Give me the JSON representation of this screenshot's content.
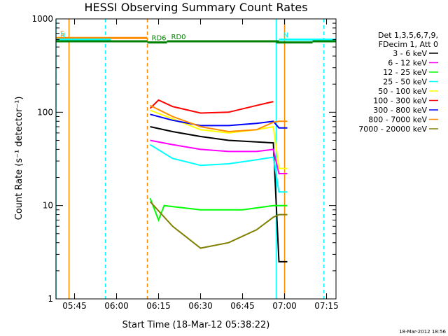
{
  "chart_data": {
    "type": "line",
    "title": "HESSI Observing Summary Count Rates",
    "xlabel": "Start Time (18-Mar-12 05:38:22)",
    "ylabel": "Count Rate (s⁻¹ detector⁻¹)",
    "ylog": true,
    "ylim": [
      1,
      1000
    ],
    "xlim": [
      "05:38:22",
      "07:18:22"
    ],
    "x_ticks": [
      "05:45",
      "06:00",
      "06:15",
      "06:30",
      "06:45",
      "07:00",
      "07:15"
    ],
    "y_ticks": [
      "1",
      "10",
      "100",
      "1000"
    ],
    "grid": false,
    "legend_placement": "right",
    "legend_header": [
      "Det 1,3,5,6,7,9,",
      "FDecim 1, Att 0"
    ],
    "series": [
      {
        "name": "3 - 6 keV",
        "color": "#000000",
        "x": [
          "06:12",
          "06:20",
          "06:30",
          "06:40",
          "06:50",
          "06:56",
          "06:58",
          "07:01"
        ],
        "values": [
          70,
          62,
          55,
          50,
          48,
          47,
          2.5,
          2.5
        ]
      },
      {
        "name": "6 - 12 keV",
        "color": "#ff00ff",
        "x": [
          "06:12",
          "06:20",
          "06:30",
          "06:40",
          "06:50",
          "06:56",
          "06:58",
          "07:01"
        ],
        "values": [
          50,
          45,
          40,
          38,
          38,
          40,
          22,
          22
        ]
      },
      {
        "name": "12 - 25 keV",
        "color": "#00ff00",
        "x": [
          "06:12",
          "06:15",
          "06:17",
          "06:30",
          "06:45",
          "06:56",
          "06:58",
          "07:01"
        ],
        "values": [
          12,
          7,
          10,
          9,
          9,
          10,
          10,
          10
        ]
      },
      {
        "name": "25 - 50 keV",
        "color": "#00ffff",
        "x": [
          "06:12",
          "06:20",
          "06:30",
          "06:40",
          "06:50",
          "06:56",
          "06:58",
          "07:01"
        ],
        "values": [
          45,
          32,
          27,
          28,
          31,
          33,
          14,
          14
        ]
      },
      {
        "name": "50 - 100 keV",
        "color": "#ffff00",
        "x": [
          "06:12",
          "06:20",
          "06:30",
          "06:40",
          "06:50",
          "06:56",
          "06:58",
          "07:01"
        ],
        "values": [
          105,
          85,
          65,
          60,
          65,
          70,
          25,
          25
        ]
      },
      {
        "name": "100 - 300 keV",
        "color": "#ff0000",
        "x": [
          "06:12",
          "06:15",
          "06:20",
          "06:30",
          "06:40",
          "06:50",
          "06:56"
        ],
        "values": [
          110,
          135,
          115,
          98,
          100,
          118,
          130
        ]
      },
      {
        "name": "300 - 800 keV",
        "color": "#0000ff",
        "x": [
          "06:12",
          "06:20",
          "06:30",
          "06:40",
          "06:50",
          "06:56",
          "06:58",
          "07:01"
        ],
        "values": [
          95,
          82,
          72,
          72,
          76,
          80,
          68,
          68
        ]
      },
      {
        "name": "800 - 7000 keV",
        "color": "#ff8c00",
        "x": [
          "06:12",
          "06:20",
          "06:30",
          "06:40",
          "06:50",
          "06:56",
          "06:58",
          "07:01"
        ],
        "values": [
          118,
          90,
          70,
          62,
          65,
          78,
          80,
          80
        ]
      },
      {
        "name": "7000 - 20000 keV",
        "color": "#808000",
        "x": [
          "06:12",
          "06:20",
          "06:30",
          "06:40",
          "06:50",
          "06:56",
          "06:58",
          "07:01"
        ],
        "values": [
          11,
          6,
          3.5,
          4,
          5.5,
          7.5,
          8,
          8
        ]
      }
    ],
    "annotations": [
      {
        "text": "S",
        "color": "#ff8c00",
        "x_start": "05:38:22",
        "x_end": "06:11",
        "level": 1.25
      },
      {
        "text": "N",
        "color": "#00ffff",
        "x_start": "05:38:22",
        "x_end": "05:58",
        "level": 1.2
      },
      {
        "text": "N",
        "color": "#00ffff",
        "x_start": "06:58",
        "x_end": "07:18:22",
        "level": 1.2
      },
      {
        "text": "RD0",
        "color": "#008000",
        "x_start": "06:18",
        "x_end": "06:58",
        "level": 1.15
      },
      {
        "text": "RD6",
        "color": "#008000",
        "x_start": "06:11",
        "x_end": "06:18",
        "level": 1.12
      },
      {
        "text": "",
        "color": "#008000",
        "x_start": "05:38:22",
        "x_end": "06:11",
        "level": 1.15
      },
      {
        "text": "",
        "color": "#008000",
        "x_start": "06:57",
        "x_end": "07:10",
        "level": 1.12
      },
      {
        "text": "",
        "color": "#008000",
        "x_start": "07:10",
        "x_end": "07:18:22",
        "level": 1.15
      }
    ],
    "vertical_lines": [
      {
        "x": "05:38:22",
        "color": "#00ffff",
        "style": "solid"
      },
      {
        "x": "05:43",
        "color": "#ff8c00",
        "style": "solid"
      },
      {
        "x": "05:56",
        "color": "#00ffff",
        "style": "dashed"
      },
      {
        "x": "06:11",
        "color": "#ff8c00",
        "style": "dashed"
      },
      {
        "x": "06:57",
        "color": "#00ffff",
        "style": "solid"
      },
      {
        "x": "07:00",
        "color": "#ff8c00",
        "style": "solid"
      },
      {
        "x": "07:14",
        "color": "#00ffff",
        "style": "dashed"
      }
    ]
  },
  "footer": {
    "timestamp": "18-Mar-2012 18:56"
  }
}
